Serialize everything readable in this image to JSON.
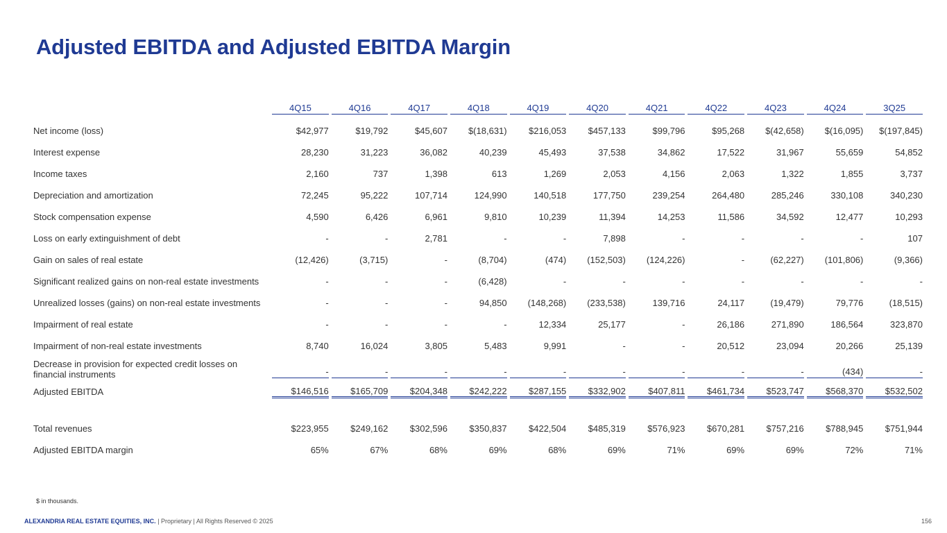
{
  "title": "Adjusted EBITDA and Adjusted EBITDA Margin",
  "periods": [
    "4Q15",
    "4Q16",
    "4Q17",
    "4Q18",
    "4Q19",
    "4Q20",
    "4Q21",
    "4Q22",
    "4Q23",
    "4Q24",
    "3Q25"
  ],
  "rows": [
    {
      "label": "Net income (loss)",
      "values": [
        "$42,977",
        "$19,792",
        "$45,607",
        "$(18,631)",
        "$216,053",
        "$457,133",
        "$99,796",
        "$95,268",
        "$(42,658)",
        "$(16,095)",
        "$(197,845)"
      ]
    },
    {
      "label": "Interest expense",
      "values": [
        "28,230",
        "31,223",
        "36,082",
        "40,239",
        "45,493",
        "37,538",
        "34,862",
        "17,522",
        "31,967",
        "55,659",
        "54,852"
      ]
    },
    {
      "label": "Income taxes",
      "values": [
        "2,160",
        "737",
        "1,398",
        "613",
        "1,269",
        "2,053",
        "4,156",
        "2,063",
        "1,322",
        "1,855",
        "3,737"
      ]
    },
    {
      "label": "Depreciation and amortization",
      "values": [
        "72,245",
        "95,222",
        "107,714",
        "124,990",
        "140,518",
        "177,750",
        "239,254",
        "264,480",
        "285,246",
        "330,108",
        "340,230"
      ]
    },
    {
      "label": "Stock compensation expense",
      "values": [
        "4,590",
        "6,426",
        "6,961",
        "9,810",
        "10,239",
        "11,394",
        "14,253",
        "11,586",
        "34,592",
        "12,477",
        "10,293"
      ]
    },
    {
      "label": "Loss on early extinguishment of debt",
      "values": [
        "-",
        "-",
        "2,781",
        "-",
        "-",
        "7,898",
        "-",
        "-",
        "-",
        "-",
        "107"
      ]
    },
    {
      "label": "Gain on sales of real estate",
      "values": [
        "(12,426)",
        "(3,715)",
        "-",
        "(8,704)",
        "(474)",
        "(152,503)",
        "(124,226)",
        "-",
        "(62,227)",
        "(101,806)",
        "(9,366)"
      ]
    },
    {
      "label": "Significant realized gains on non-real estate investments",
      "values": [
        "-",
        "-",
        "-",
        "(6,428)",
        "-",
        "-",
        "-",
        "-",
        "-",
        "-",
        "-"
      ]
    },
    {
      "label": "Unrealized losses (gains) on non-real estate investments",
      "values": [
        "-",
        "-",
        "-",
        "94,850",
        "(148,268)",
        "(233,538)",
        "139,716",
        "24,117",
        "(19,479)",
        "79,776",
        "(18,515)"
      ]
    },
    {
      "label": "Impairment of real estate",
      "values": [
        "-",
        "-",
        "-",
        "-",
        "12,334",
        "25,177",
        "-",
        "26,186",
        "271,890",
        "186,564",
        "323,870"
      ]
    },
    {
      "label": "Impairment of non-real estate investments",
      "values": [
        "8,740",
        "16,024",
        "3,805",
        "5,483",
        "9,991",
        "-",
        "-",
        "20,512",
        "23,094",
        "20,266",
        "25,139"
      ]
    }
  ],
  "provision_row": {
    "label": "Decrease in provision for expected credit losses on financial instruments",
    "values": [
      "-",
      "-",
      "-",
      "-",
      "-",
      "-",
      "-",
      "-",
      "-",
      "(434)",
      "-"
    ]
  },
  "adjusted_ebitda_row": {
    "label": "Adjusted EBITDA",
    "values": [
      "$146,516",
      "$165,709",
      "$204,348",
      "$242,222",
      "$287,155",
      "$332,902",
      "$407,811",
      "$461,734",
      "$523,747",
      "$568,370",
      "$532,502"
    ]
  },
  "total_revenues_row": {
    "label": "Total revenues",
    "values": [
      "$223,955",
      "$249,162",
      "$302,596",
      "$350,837",
      "$422,504",
      "$485,319",
      "$576,923",
      "$670,281",
      "$757,216",
      "$788,945",
      "$751,944"
    ]
  },
  "margin_row": {
    "label": "Adjusted EBITDA margin",
    "values": [
      "65%",
      "67%",
      "68%",
      "69%",
      "68%",
      "69%",
      "71%",
      "69%",
      "69%",
      "72%",
      "71%"
    ]
  },
  "footnote": "$ in thousands.",
  "footer": {
    "company": "ALEXANDRIA REAL ESTATE EQUITIES, INC.",
    "suffix": " | Proprietary | All Rights Reserved © 2025",
    "page_number": "156"
  }
}
